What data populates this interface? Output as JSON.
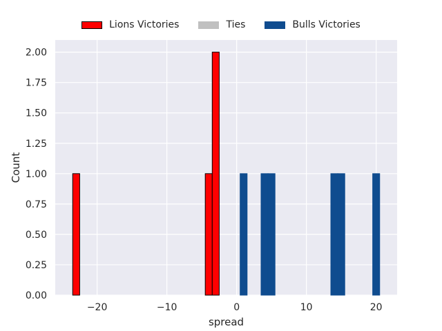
{
  "chart_data": {
    "type": "bar",
    "xlabel": "spread",
    "ylabel": "Count",
    "xlim": [
      -26,
      23
    ],
    "ylim": [
      0,
      2.1
    ],
    "x_ticks": [
      -20,
      -10,
      0,
      10,
      20
    ],
    "x_tick_labels": [
      "−20",
      "−10",
      "0",
      "10",
      "20"
    ],
    "y_ticks": [
      0,
      0.25,
      0.5,
      0.75,
      1.0,
      1.25,
      1.5,
      1.75,
      2.0
    ],
    "y_tick_labels": [
      "0.00",
      "0.25",
      "0.50",
      "0.75",
      "1.00",
      "1.25",
      "1.50",
      "1.75",
      "2.00"
    ],
    "grid": true,
    "legend_position": "top-center",
    "bin_width": 1,
    "series": [
      {
        "name": "Lions Victories",
        "color": "#ff0000",
        "edgecolor": "#000000",
        "bins": [
          {
            "x": -23,
            "count": 1
          },
          {
            "x": -4,
            "count": 1
          },
          {
            "x": -3,
            "count": 2
          }
        ]
      },
      {
        "name": "Ties",
        "color": "#c0c0c0",
        "edgecolor": "#c0c0c0",
        "bins": []
      },
      {
        "name": "Bulls Victories",
        "color": "#0f4c8f",
        "edgecolor": "#0f4c8f",
        "bins": [
          {
            "x": 1,
            "count": 1
          },
          {
            "x": 4,
            "count": 1
          },
          {
            "x": 5,
            "count": 1
          },
          {
            "x": 14,
            "count": 1
          },
          {
            "x": 15,
            "count": 1
          },
          {
            "x": 20,
            "count": 1
          }
        ]
      }
    ]
  }
}
